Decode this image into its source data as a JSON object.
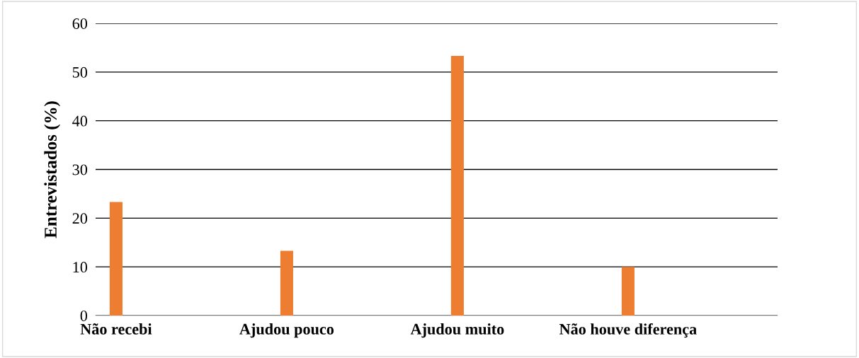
{
  "chart_data": {
    "type": "bar",
    "ylabel": "Entrevistados (%)",
    "categories": [
      "Não recebi",
      "Ajudou pouco",
      "Ajudou muito",
      "Não houve diferença"
    ],
    "values": [
      23.3,
      13.3,
      53.3,
      10
    ],
    "color": "#ed7d31",
    "ylim": [
      0,
      60
    ],
    "yticks": [
      0,
      10,
      20,
      30,
      40,
      50,
      60
    ],
    "grid": "y",
    "legend": false
  }
}
